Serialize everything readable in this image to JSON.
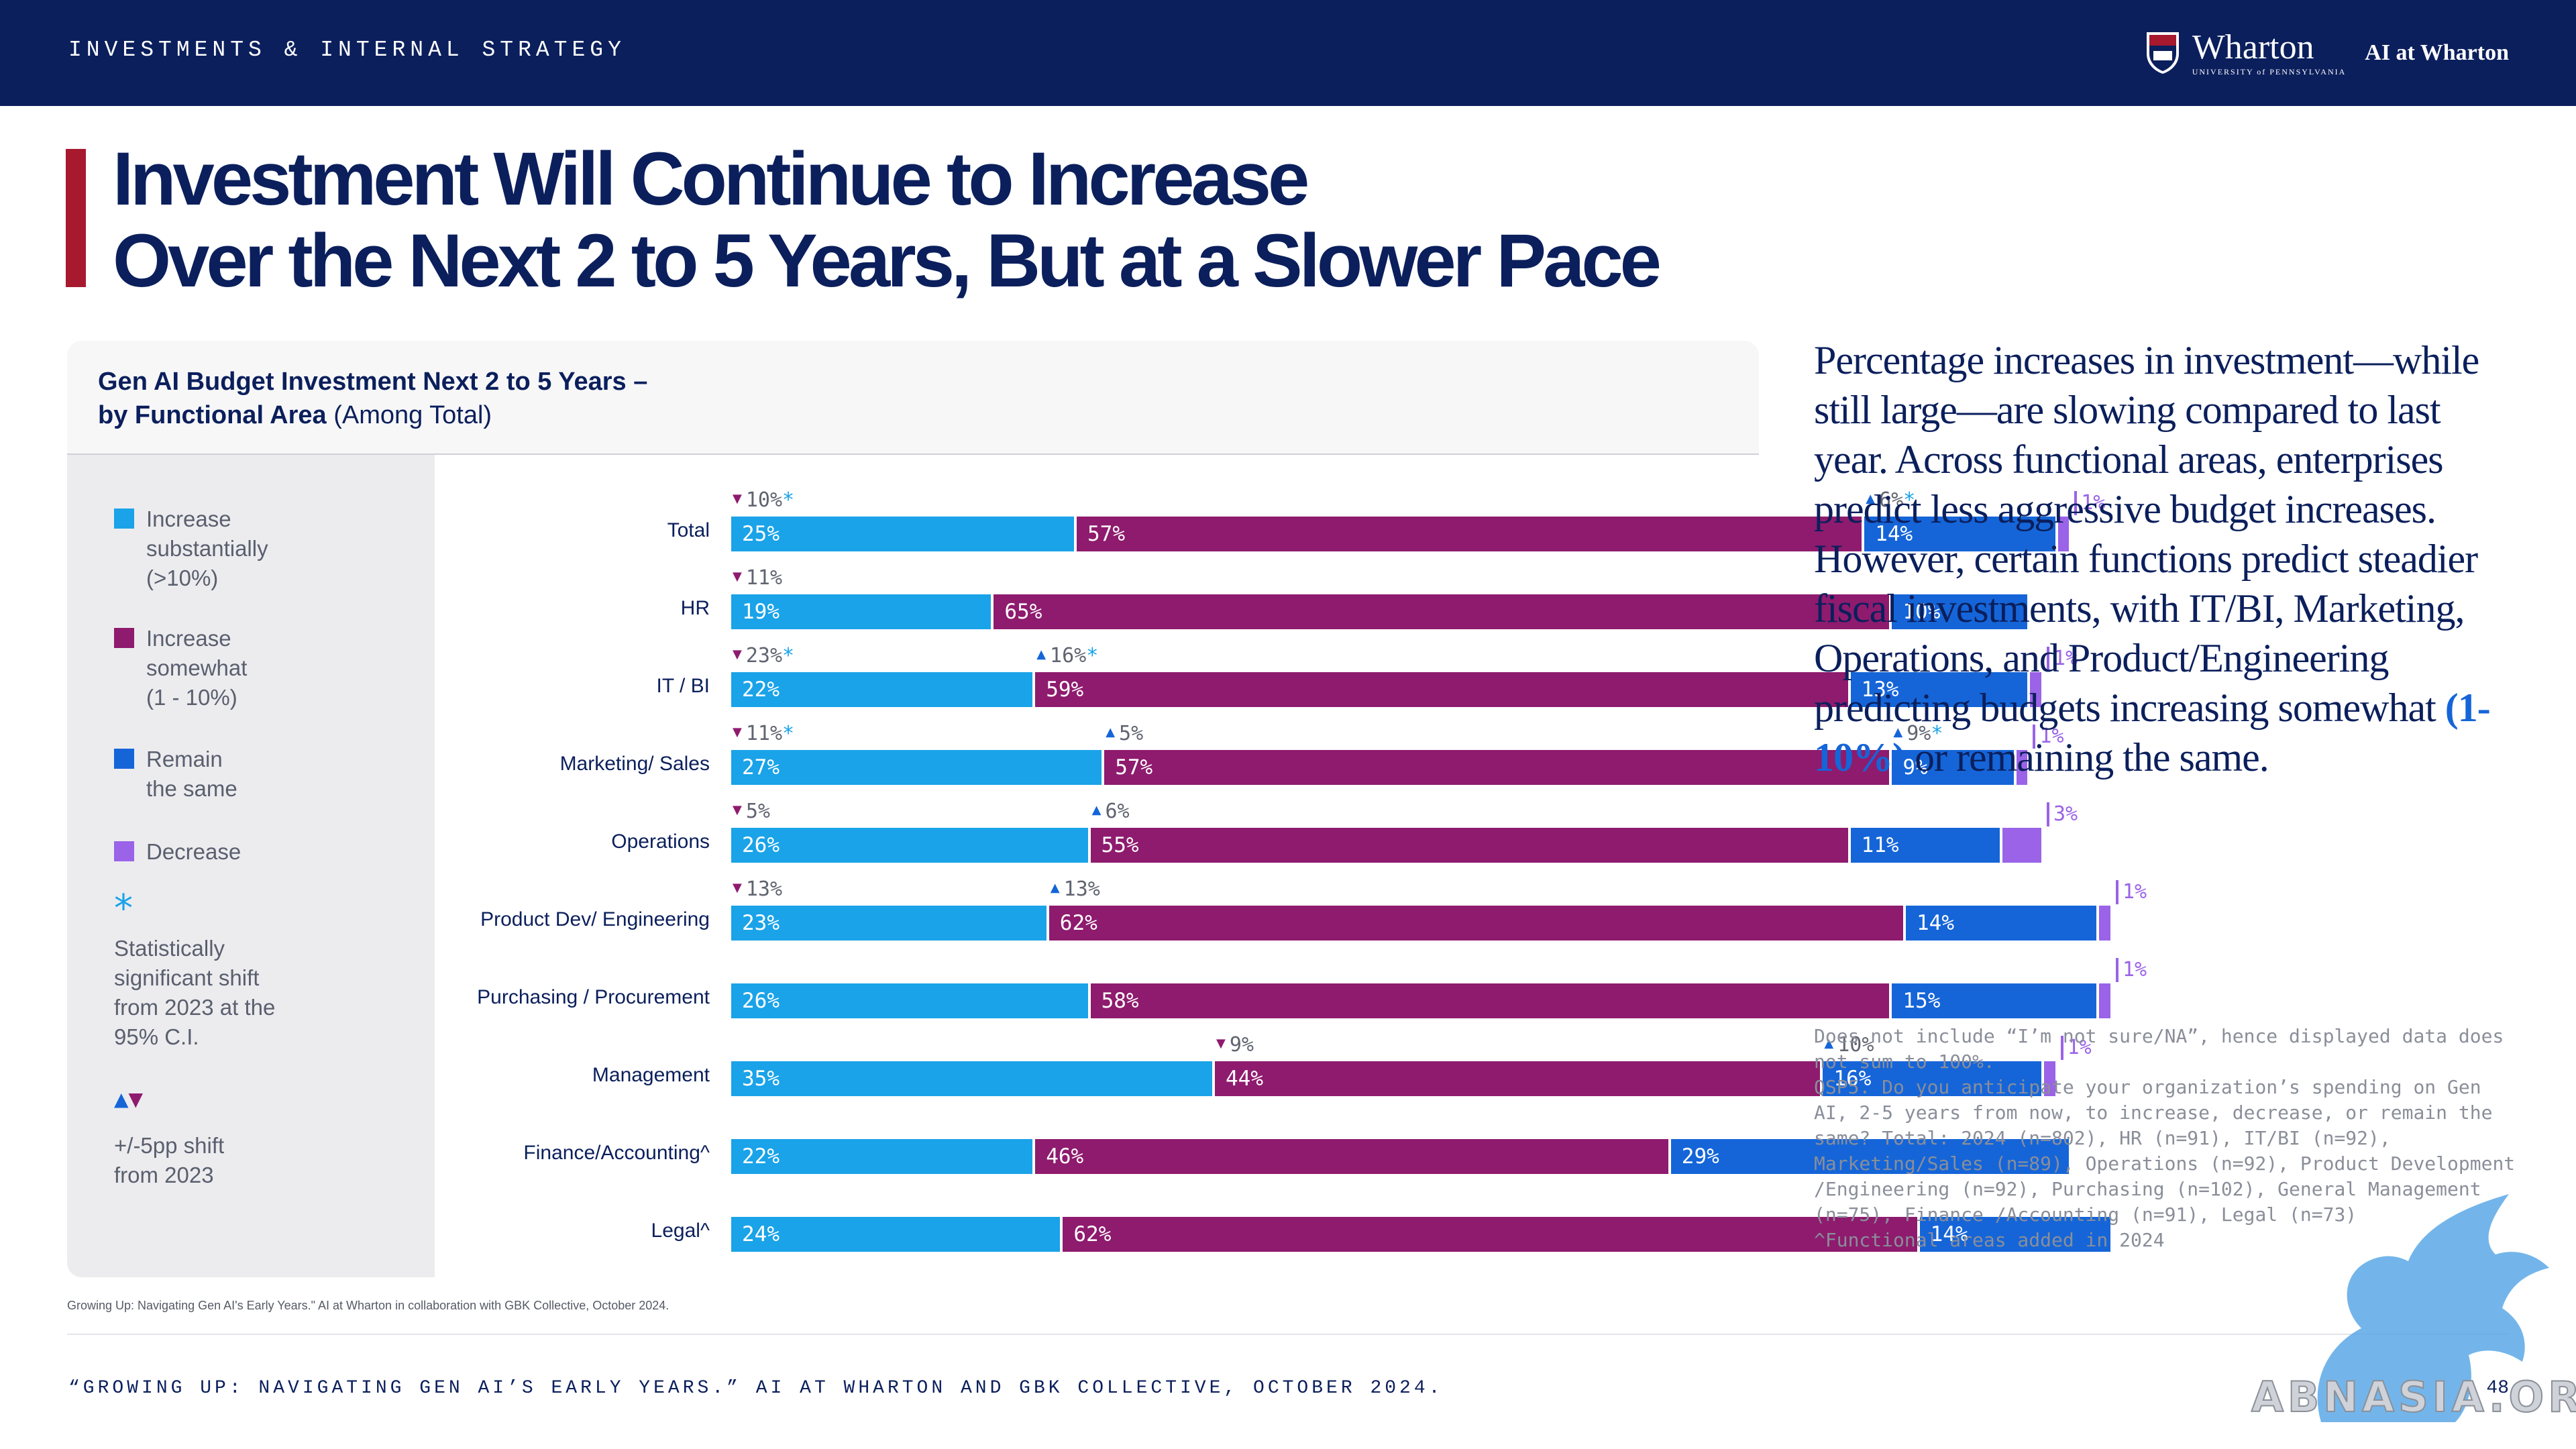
{
  "header": {
    "section": "INVESTMENTS & INTERNAL STRATEGY",
    "brand_name": "Wharton",
    "brand_sub": "UNIVERSITY of PENNSYLVANIA",
    "brand_ai": "AI at Wharton"
  },
  "title_lines": [
    "Investment Will Continue to Increase",
    "Over the Next 2 to 5 Years, But at a Slower Pace"
  ],
  "card": {
    "title_bold_1": "Gen AI Budget Investment Next 2 to 5 Years –",
    "title_bold_2": "by Functional Area",
    "title_normal": " (Among Total)"
  },
  "legend": [
    {
      "lines": [
        "Increase",
        "substantially",
        "(>10%)"
      ],
      "color": "#1aa3e8"
    },
    {
      "lines": [
        "Increase",
        "somewhat",
        "(1 - 10%)"
      ],
      "color": "#8e1b6e"
    },
    {
      "lines": [
        "Remain",
        "the same"
      ],
      "color": "#1565d8"
    },
    {
      "lines": [
        "Decrease"
      ],
      "color": "#9a63e8"
    }
  ],
  "legend_star": {
    "symbol": "*",
    "lines": [
      "Statistically",
      "significant shift",
      "from 2023 at the",
      "95% C.I."
    ]
  },
  "legend_arrows": {
    "lines": [
      "+/-5pp shift",
      "from 2023"
    ]
  },
  "chart_data": {
    "type": "bar",
    "orientation": "horizontal",
    "stacked": true,
    "title": "Gen AI Budget Investment Next 2 to 5 Years – by Functional Area (Among Total)",
    "categories": [
      "Total",
      "HR",
      "IT / BI",
      "Marketing/ Sales",
      "Operations",
      "Product Dev/ Engineering",
      "Purchasing / Procurement",
      "Management",
      "Finance/Accounting^",
      "Legal^"
    ],
    "series": [
      {
        "name": "Increase substantially (>10%)",
        "color": "#1aa3e8",
        "values": [
          25,
          19,
          22,
          27,
          26,
          23,
          26,
          35,
          22,
          24
        ]
      },
      {
        "name": "Increase somewhat (1 - 10%)",
        "color": "#8e1b6e",
        "values": [
          57,
          65,
          59,
          57,
          55,
          62,
          58,
          44,
          46,
          62
        ]
      },
      {
        "name": "Remain the same",
        "color": "#1565d8",
        "values": [
          14,
          10,
          13,
          9,
          11,
          14,
          15,
          16,
          29,
          14
        ]
      },
      {
        "name": "Decrease",
        "color": "#9a63e8",
        "values": [
          1,
          null,
          1,
          1,
          3,
          1,
          1,
          1,
          null,
          null
        ]
      }
    ],
    "bar_labels": [
      [
        "25%",
        "57%",
        "14%"
      ],
      [
        "19%",
        "65%",
        "10%"
      ],
      [
        "22%",
        "59%",
        "13%"
      ],
      [
        "27%",
        "57%",
        "9%"
      ],
      [
        "26%",
        "55%",
        "11%"
      ],
      [
        "23%",
        "62%",
        "14%"
      ],
      [
        "26%",
        "58%",
        "15%"
      ],
      [
        "35%",
        "44%",
        "16%"
      ],
      [
        "22%",
        "46%",
        "29%"
      ],
      [
        "24%",
        "62%",
        "14%"
      ]
    ],
    "decrease_labels": [
      "1%",
      "",
      "1%",
      "1%",
      "3%",
      "1%",
      "1%",
      "1%",
      "",
      ""
    ],
    "shifts": [
      [
        {
          "series": 0,
          "dir": "down",
          "value": "10%",
          "sig": true
        },
        {
          "series": 2,
          "dir": "up",
          "value": "6%",
          "sig": true
        }
      ],
      [
        {
          "series": 0,
          "dir": "down",
          "value": "11%",
          "sig": false
        }
      ],
      [
        {
          "series": 0,
          "dir": "down",
          "value": "23%",
          "sig": true
        },
        {
          "series": 1,
          "dir": "up",
          "value": "16%",
          "sig": true
        }
      ],
      [
        {
          "series": 0,
          "dir": "down",
          "value": "11%",
          "sig": true
        },
        {
          "series": 1,
          "dir": "up",
          "value": "5%",
          "sig": false
        },
        {
          "series": 2,
          "dir": "up",
          "value": "9%",
          "sig": true
        }
      ],
      [
        {
          "series": 0,
          "dir": "down",
          "value": "5%",
          "sig": false
        },
        {
          "series": 1,
          "dir": "up",
          "value": "6%",
          "sig": false
        }
      ],
      [
        {
          "series": 0,
          "dir": "down",
          "value": "13%",
          "sig": false
        },
        {
          "series": 1,
          "dir": "up",
          "value": "13%",
          "sig": false
        }
      ],
      [],
      [
        {
          "series": 1,
          "dir": "down",
          "value": "9%",
          "sig": false
        },
        {
          "series": 2,
          "dir": "up",
          "value": "10%",
          "sig": false
        }
      ],
      [],
      []
    ]
  },
  "source_small": "Growing Up: Navigating Gen AI's Early Years.\" AI at Wharton in collaboration with GBK Collective, October 2024.",
  "commentary": {
    "text": "Percentage increases in investment—while still large—are slowing compared to last year. Across functional areas, enterprises predict less aggressive budget increases. However, certain functions predict steadier fiscal investments, with IT/BI, Marketing, Operations, and Product/Engineering predicting budgets increasing somewhat ",
    "highlight": "(1-10%)",
    "tail": " or remaining the same."
  },
  "notes": [
    "Does not include “I’m not sure/NA”, hence displayed data does not sum to 100%.",
    "QSP5. Do you anticipate your organization’s spending on Gen AI, 2-5 years from now, to increase, decrease, or remain the same? Total: 2024 (n=802), HR (n=91), IT/BI (n=92), Marketing/Sales (n=89), Operations (n=92), Product Development /Engineering (n=92), Purchasing (n=102), General Management (n=75), Finance /Accounting (n=91), Legal (n=73)",
    "^Functional areas added in 2024"
  ],
  "footer": "“GROWING UP: NAVIGATING GEN AI’S EARLY YEARS.” AI AT WHARTON AND GBK COLLECTIVE, OCTOBER 2024.",
  "page_number": "48",
  "watermark": "ABNASIA.ORG"
}
